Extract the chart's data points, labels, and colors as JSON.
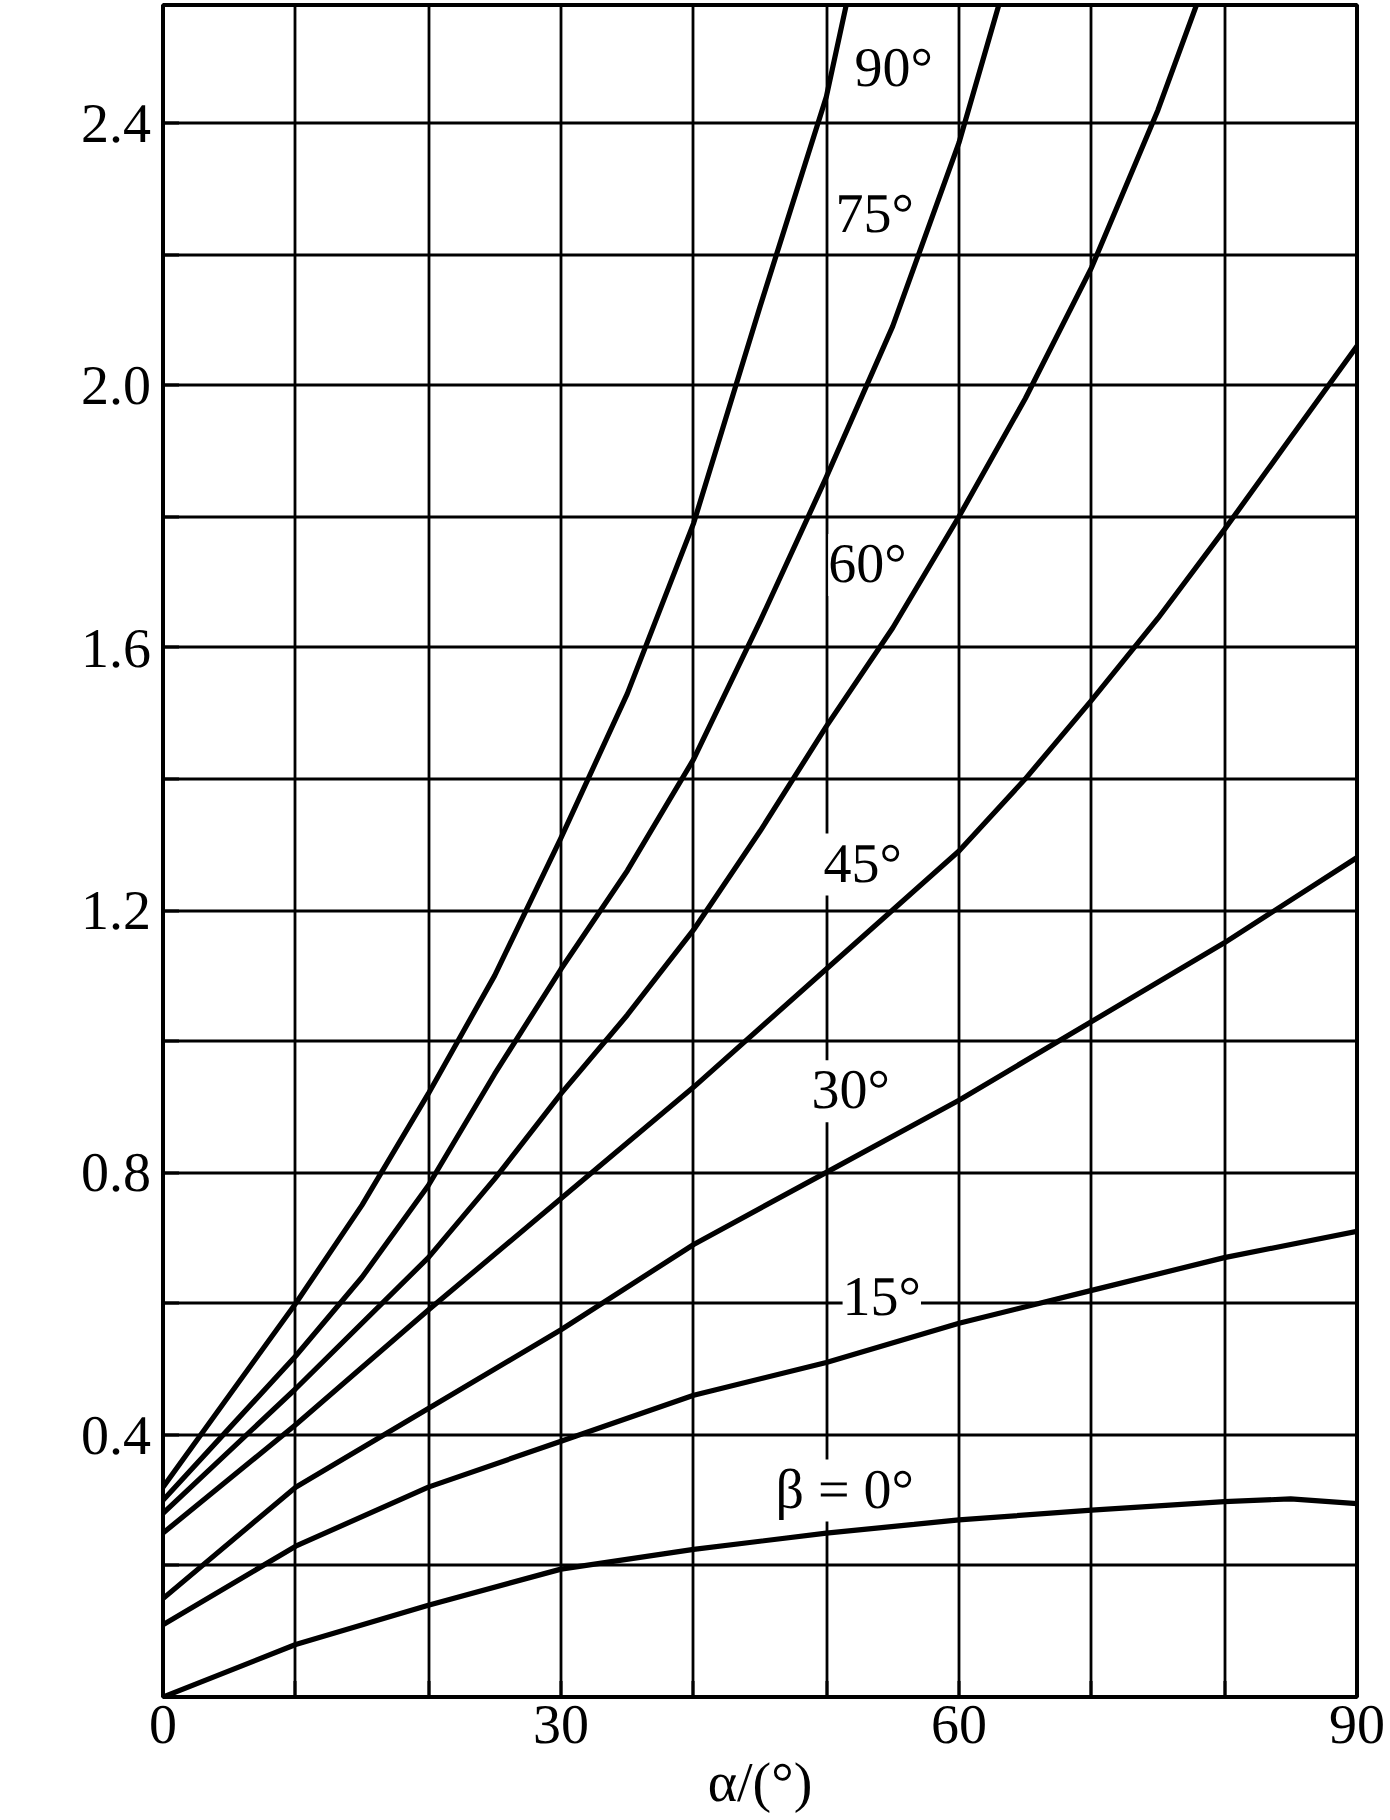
{
  "chart_data": {
    "type": "line",
    "xlabel": "α/(°)",
    "xlim": [
      0,
      90
    ],
    "ylim": [
      0,
      2.58
    ],
    "xticks": [
      0,
      {
        "value": 10,
        "label": null
      },
      {
        "value": 20,
        "label": null
      },
      30,
      {
        "value": 40,
        "label": null
      },
      {
        "value": 50,
        "label": null
      },
      60,
      {
        "value": 70,
        "label": null
      },
      {
        "value": 80,
        "label": null
      },
      90
    ],
    "yticks": [
      {
        "value": 0,
        "label": null
      },
      {
        "value": 0.2,
        "label": null
      },
      0.4,
      {
        "value": 0.6,
        "label": null
      },
      0.8,
      {
        "value": 1.0,
        "label": null
      },
      1.2,
      {
        "value": 1.4,
        "label": null
      },
      1.6,
      {
        "value": 1.8,
        "label": null
      },
      {
        "value": 2,
        "label": "2.0"
      },
      {
        "value": 2.2,
        "label": null
      },
      2.4
    ],
    "grid": true,
    "line_style": "solid",
    "series": [
      {
        "name": "β = 0°",
        "color": "#000000",
        "x": [
          0,
          10,
          20,
          30,
          40,
          50,
          60,
          70,
          80,
          85,
          90
        ],
        "values": [
          0,
          0.08,
          0.14,
          0.195,
          0.225,
          0.25,
          0.27,
          0.285,
          0.298,
          0.302,
          0.295
        ]
      },
      {
        "name": "15°",
        "color": "#000000",
        "x": [
          0,
          10,
          20,
          30,
          40,
          50,
          60,
          70,
          80,
          90
        ],
        "values": [
          0.11,
          0.23,
          0.32,
          0.39,
          0.46,
          0.51,
          0.57,
          0.62,
          0.67,
          0.71
        ]
      },
      {
        "name": "30°",
        "color": "#000000",
        "x": [
          0,
          10,
          20,
          30,
          40,
          50,
          60,
          70,
          80,
          90
        ],
        "values": [
          0.15,
          0.32,
          0.44,
          0.56,
          0.69,
          0.8,
          0.91,
          1.03,
          1.15,
          1.28
        ]
      },
      {
        "name": "45°",
        "color": "#000000",
        "x": [
          0,
          10,
          20,
          30,
          40,
          50,
          55,
          60,
          65,
          70,
          75,
          80,
          85,
          90
        ],
        "values": [
          0.25,
          0.415,
          0.59,
          0.76,
          0.93,
          1.11,
          1.2,
          1.29,
          1.4,
          1.52,
          1.645,
          1.78,
          1.92,
          2.06
        ]
      },
      {
        "name": "60°",
        "color": "#000000",
        "x": [
          0,
          10,
          20,
          25,
          30,
          35,
          40,
          45,
          50,
          55,
          60,
          65,
          70,
          75,
          77.9
        ],
        "values": [
          0.28,
          0.47,
          0.67,
          0.79,
          0.92,
          1.04,
          1.17,
          1.32,
          1.48,
          1.63,
          1.8,
          1.98,
          2.18,
          2.42,
          2.58
        ]
      },
      {
        "name": "75°",
        "color": "#000000",
        "x": [
          0,
          5,
          10,
          15,
          20,
          25,
          30,
          35,
          40,
          45,
          50,
          55,
          60,
          63
        ],
        "values": [
          0.3,
          0.41,
          0.52,
          0.64,
          0.78,
          0.95,
          1.11,
          1.26,
          1.43,
          1.64,
          1.86,
          2.09,
          2.37,
          2.58
        ]
      },
      {
        "name": "90°",
        "color": "#000000",
        "x": [
          0,
          5,
          10,
          15,
          20,
          25,
          30,
          35,
          40,
          45,
          50,
          51.5
        ],
        "values": [
          0.32,
          0.46,
          0.6,
          0.75,
          0.92,
          1.1,
          1.31,
          1.53,
          1.79,
          2.12,
          2.44,
          2.58
        ]
      }
    ]
  }
}
